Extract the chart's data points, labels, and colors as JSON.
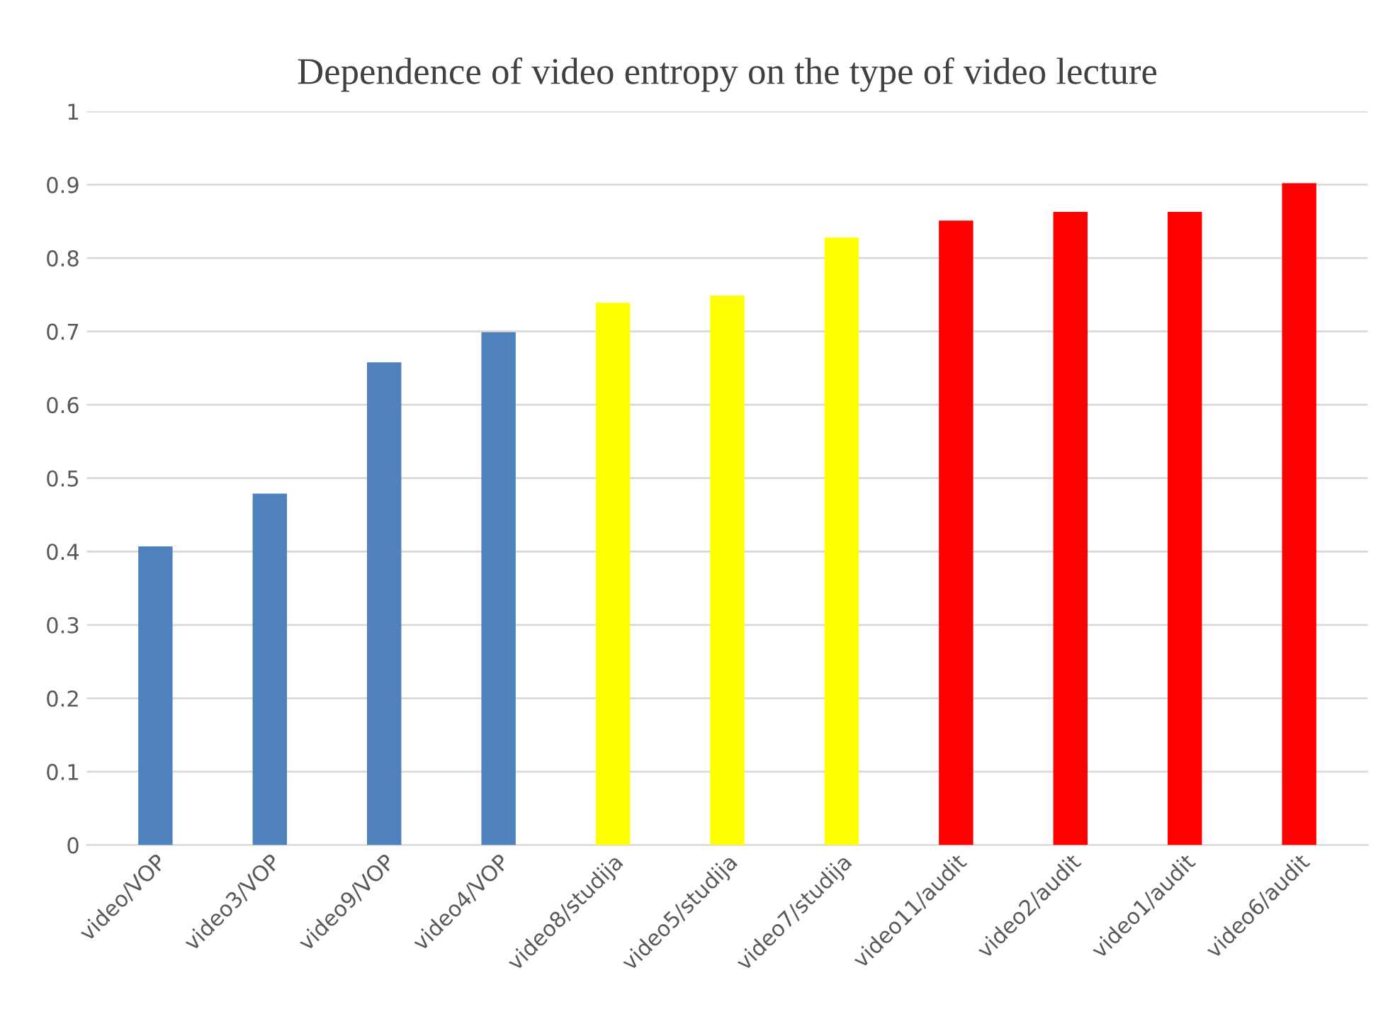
{
  "chart_data": {
    "type": "bar",
    "title": "Dependence of video entropy on the type of video lecture",
    "categories": [
      "video/VOP",
      "video3/VOP",
      "video9/VOP",
      "video4/VOP",
      "video8/studija",
      "video5/studija",
      "video7/studija",
      "video11/audit",
      "video2/audit",
      "video1/audit",
      "video6/audit"
    ],
    "values": [
      0.407,
      0.479,
      0.658,
      0.699,
      0.739,
      0.749,
      0.828,
      0.851,
      0.863,
      0.863,
      0.902
    ],
    "colors": [
      "#4f81bd",
      "#4f81bd",
      "#4f81bd",
      "#4f81bd",
      "#ffff00",
      "#ffff00",
      "#ffff00",
      "#ff0000",
      "#ff0000",
      "#ff0000",
      "#ff0000"
    ],
    "ylim": [
      0,
      1
    ],
    "yticks": [
      0,
      0.1,
      0.2,
      0.3,
      0.4,
      0.5,
      0.6,
      0.7,
      0.8,
      0.9,
      1
    ],
    "grid": "y"
  }
}
